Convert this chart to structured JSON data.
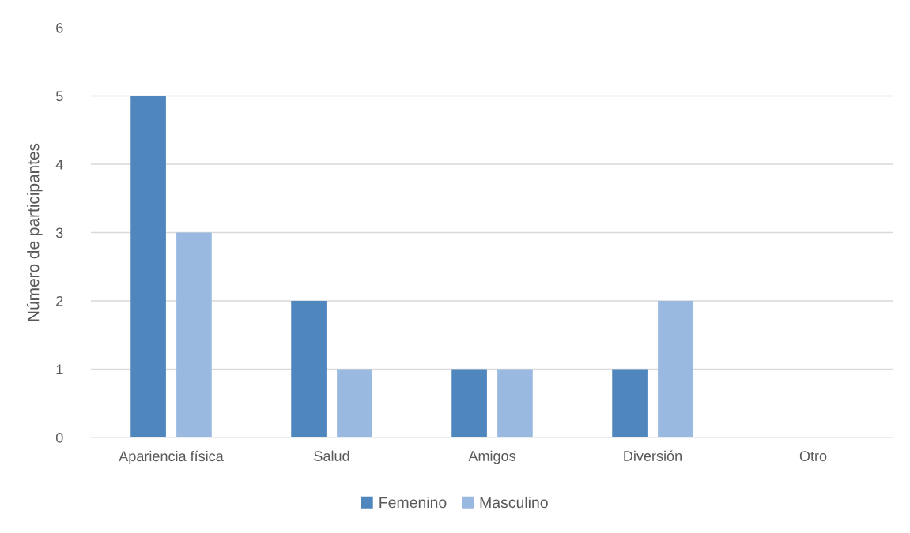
{
  "chart_data": {
    "type": "bar",
    "ylabel": "Número de participantes",
    "categories": [
      "Apariencia física",
      "Salud",
      "Amigos",
      "Diversión",
      "Otro"
    ],
    "series": [
      {
        "name": "Femenino",
        "color": "#4f86be",
        "values": [
          5,
          2,
          1,
          1,
          0
        ]
      },
      {
        "name": "Masculino",
        "color": "#9ab9e0",
        "values": [
          3,
          1,
          1,
          2,
          0
        ]
      }
    ],
    "ylim": [
      0,
      6
    ],
    "yticks": [
      0,
      1,
      2,
      3,
      4,
      5,
      6
    ],
    "grid": "y",
    "legend": "bottom"
  }
}
